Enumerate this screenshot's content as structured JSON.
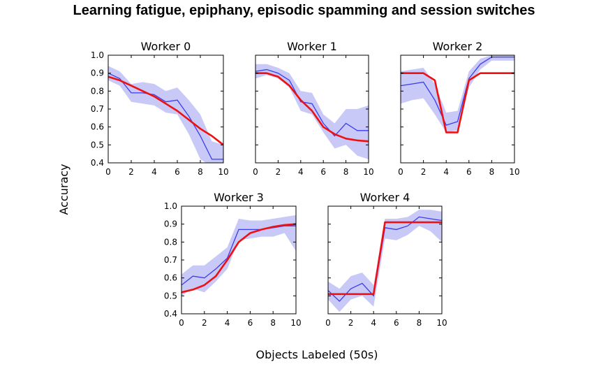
{
  "title": "Learning fatigue, epiphany, episodic spamming and session switches",
  "chart_data": {
    "type": "line",
    "xlabel": "Objects Labeled (50s)",
    "ylabel": "Accuracy",
    "xlim": [
      0,
      10
    ],
    "ylim": [
      0.4,
      1.0
    ],
    "xticks": [
      0,
      2,
      4,
      6,
      8,
      10
    ],
    "yticks": [
      0.4,
      0.5,
      0.6,
      0.7,
      0.8,
      0.9,
      1.0
    ],
    "ytick_labels": [
      "0.4",
      "0.5",
      "0.6",
      "0.7",
      "0.8",
      "0.9",
      "1.0"
    ],
    "colors": {
      "observed": "#3b3bf0",
      "band": "#c9c9f7",
      "fit": "#ee1111"
    },
    "panels": [
      {
        "title": "Worker 0",
        "x": [
          0,
          1,
          2,
          3,
          4,
          5,
          6,
          7,
          8,
          9,
          10
        ],
        "observed": [
          0.9,
          0.87,
          0.79,
          0.79,
          0.78,
          0.74,
          0.75,
          0.66,
          0.55,
          0.42,
          0.42
        ],
        "band_low": [
          0.86,
          0.83,
          0.74,
          0.73,
          0.72,
          0.68,
          0.67,
          0.56,
          0.42,
          0.38,
          0.38
        ],
        "band_high": [
          0.94,
          0.91,
          0.84,
          0.85,
          0.84,
          0.8,
          0.82,
          0.75,
          0.67,
          0.52,
          0.5
        ],
        "fit": [
          0.88,
          0.86,
          0.83,
          0.8,
          0.77,
          0.73,
          0.69,
          0.64,
          0.59,
          0.55,
          0.5
        ]
      },
      {
        "title": "Worker 1",
        "x": [
          0,
          1,
          2,
          3,
          4,
          5,
          6,
          7,
          8,
          9,
          10
        ],
        "observed": [
          0.91,
          0.92,
          0.9,
          0.86,
          0.74,
          0.73,
          0.62,
          0.55,
          0.62,
          0.58,
          0.58
        ],
        "band_low": [
          0.87,
          0.89,
          0.87,
          0.82,
          0.69,
          0.67,
          0.57,
          0.48,
          0.5,
          0.44,
          0.42
        ],
        "band_high": [
          0.95,
          0.95,
          0.93,
          0.9,
          0.8,
          0.79,
          0.67,
          0.62,
          0.7,
          0.7,
          0.72
        ],
        "fit": [
          0.9,
          0.9,
          0.88,
          0.83,
          0.75,
          0.69,
          0.6,
          0.56,
          0.535,
          0.525,
          0.52
        ]
      },
      {
        "title": "Worker 2",
        "x": [
          0,
          1,
          2,
          3,
          4,
          5,
          6,
          7,
          8,
          9,
          10
        ],
        "observed": [
          0.83,
          0.84,
          0.85,
          0.75,
          0.61,
          0.63,
          0.87,
          0.95,
          0.99,
          0.99,
          0.99
        ],
        "band_low": [
          0.73,
          0.75,
          0.76,
          0.67,
          0.57,
          0.58,
          0.82,
          0.92,
          0.97,
          0.97,
          0.97
        ],
        "band_high": [
          0.91,
          0.92,
          0.93,
          0.84,
          0.68,
          0.69,
          0.91,
          0.98,
          1.0,
          1.0,
          1.0
        ],
        "fit_x": [
          0,
          2,
          3,
          4,
          5,
          6,
          7,
          10
        ],
        "fit": [
          0.9,
          0.9,
          0.86,
          0.57,
          0.57,
          0.86,
          0.9,
          0.9
        ]
      },
      {
        "title": "Worker 3",
        "x": [
          0,
          1,
          2,
          3,
          4,
          5,
          6,
          7,
          8,
          9,
          10
        ],
        "observed": [
          0.56,
          0.61,
          0.6,
          0.65,
          0.71,
          0.87,
          0.87,
          0.87,
          0.88,
          0.89,
          0.89
        ],
        "band_low": [
          0.5,
          0.54,
          0.52,
          0.58,
          0.65,
          0.81,
          0.82,
          0.83,
          0.83,
          0.85,
          0.75
        ],
        "band_high": [
          0.62,
          0.67,
          0.67,
          0.72,
          0.77,
          0.93,
          0.92,
          0.92,
          0.93,
          0.94,
          0.95
        ],
        "fit": [
          0.52,
          0.535,
          0.56,
          0.61,
          0.7,
          0.8,
          0.85,
          0.87,
          0.885,
          0.895,
          0.9
        ]
      },
      {
        "title": "Worker 4",
        "x": [
          0,
          1,
          2,
          3,
          4,
          5,
          6,
          7,
          8,
          9,
          10
        ],
        "observed": [
          0.53,
          0.47,
          0.54,
          0.57,
          0.5,
          0.88,
          0.87,
          0.89,
          0.94,
          0.93,
          0.92
        ],
        "band_low": [
          0.48,
          0.41,
          0.48,
          0.5,
          0.44,
          0.82,
          0.81,
          0.84,
          0.89,
          0.86,
          0.8
        ],
        "band_high": [
          0.58,
          0.54,
          0.61,
          0.63,
          0.56,
          0.93,
          0.93,
          0.94,
          0.98,
          0.98,
          0.97
        ],
        "fit_x": [
          0,
          4,
          5,
          10
        ],
        "fit": [
          0.51,
          0.51,
          0.91,
          0.91
        ]
      }
    ]
  }
}
